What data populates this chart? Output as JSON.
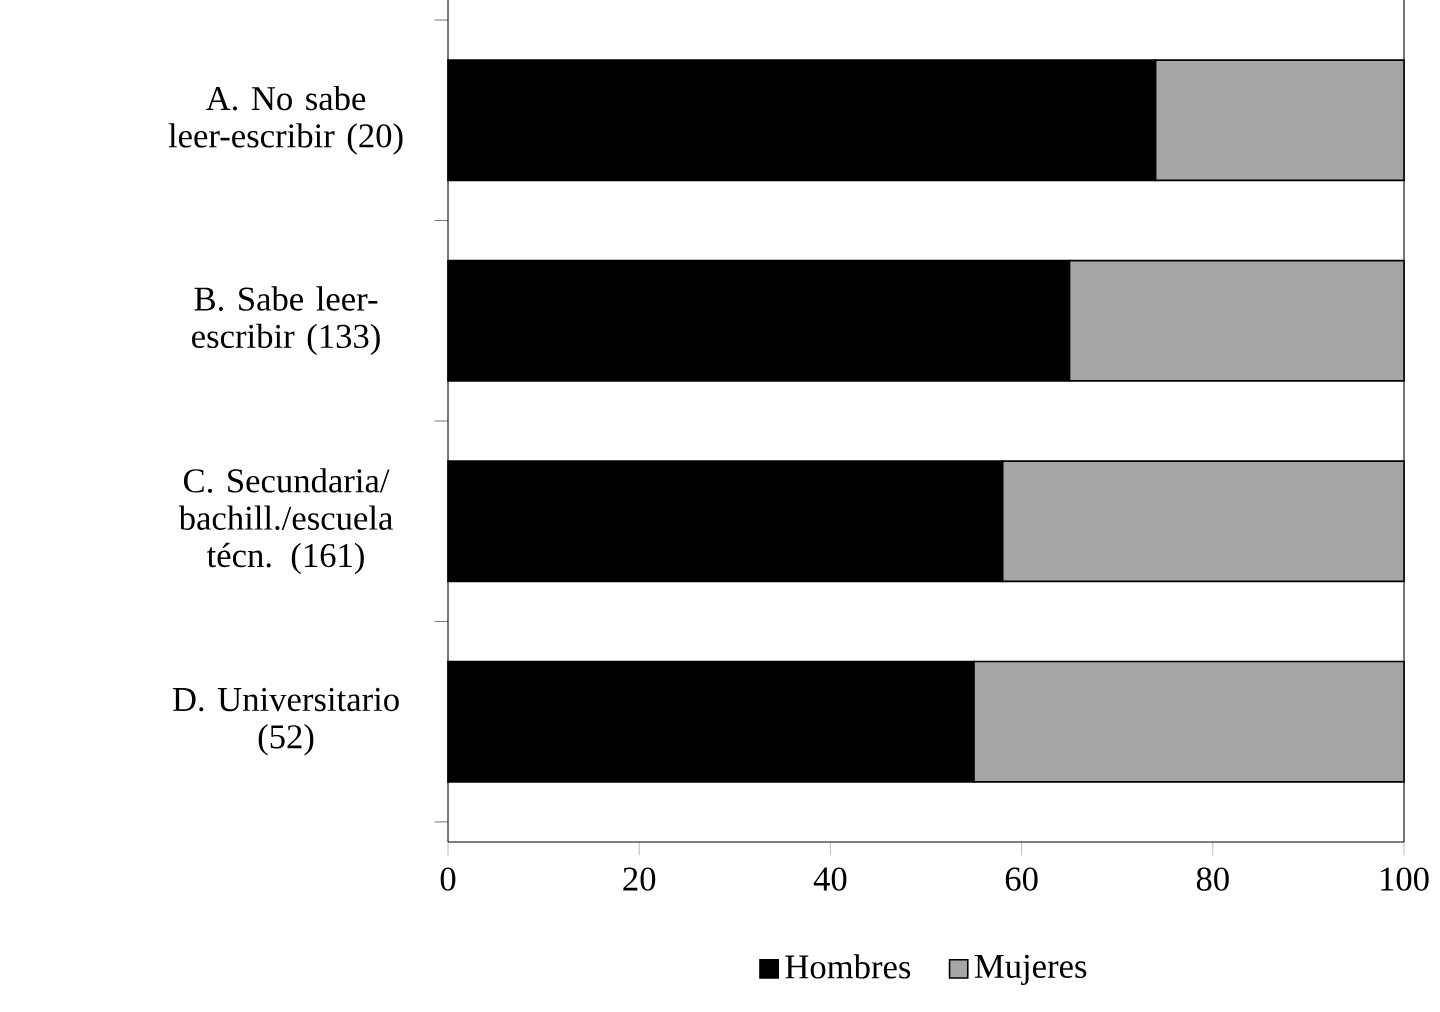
{
  "chart_data": {
    "type": "bar",
    "orientation": "horizontal",
    "stacked": true,
    "categories": [
      "A. No sabe leer-escribir (20)",
      "B. Sabe leer-escribir (133)",
      "C. Secundaria/ bachill./escuela técn. (161)",
      "D. Universitario (52)"
    ],
    "series": [
      {
        "name": "Hombres",
        "color": "#000000",
        "values": [
          74,
          65,
          58,
          55
        ]
      },
      {
        "name": "Mujeres",
        "color": "#a6a6a6",
        "values": [
          26,
          35,
          42,
          45
        ]
      }
    ],
    "xlim": [
      0,
      100
    ],
    "xticks": [
      0,
      20,
      40,
      60,
      80,
      100
    ],
    "grid": false,
    "legend": "bottom"
  }
}
